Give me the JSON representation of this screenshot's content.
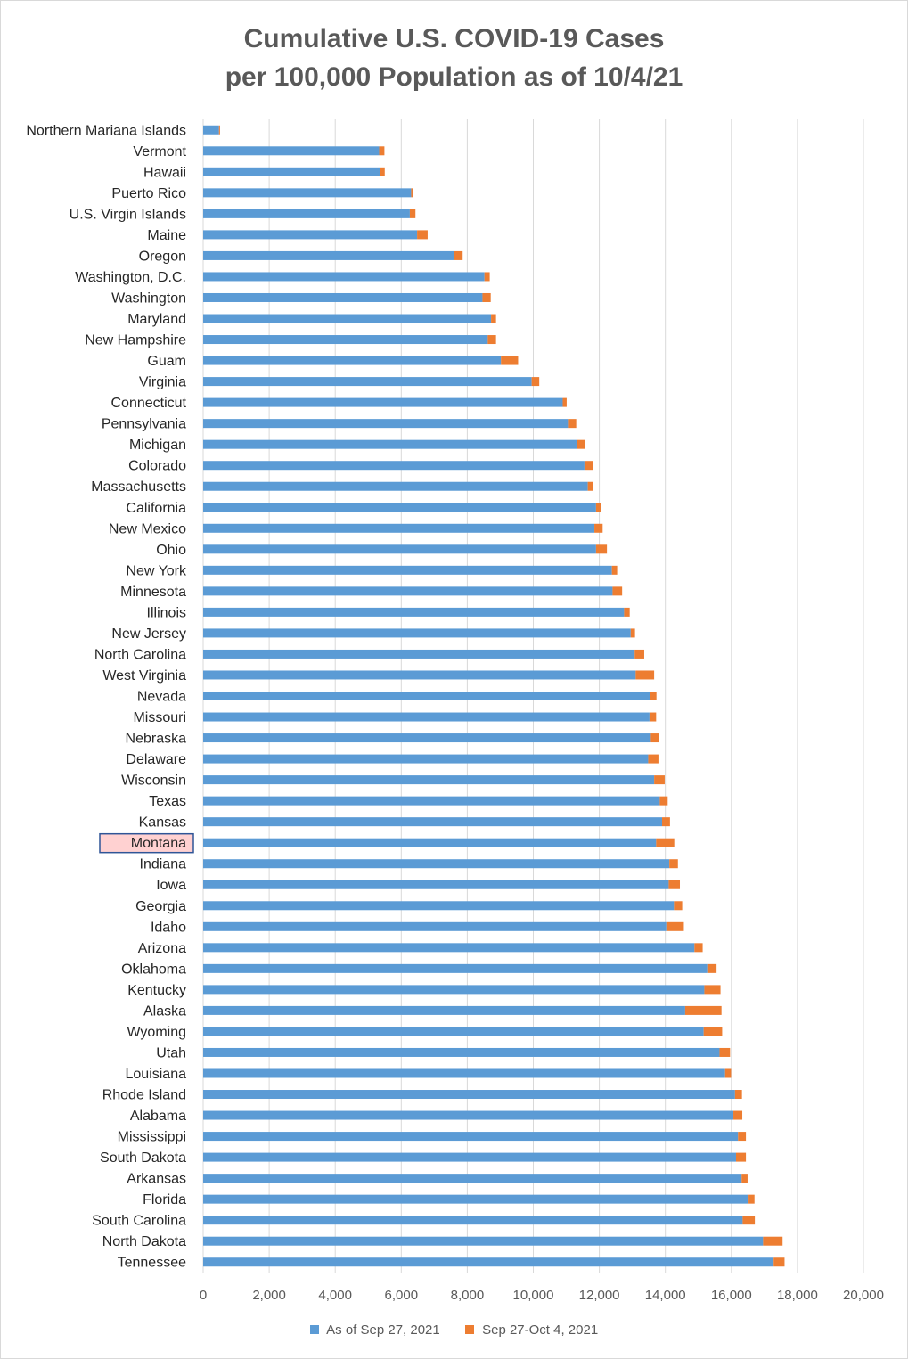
{
  "chart_data": {
    "type": "bar",
    "orientation": "horizontal",
    "stacked": true,
    "title_lines": [
      "Cumulative U.S. COVID-19 Cases",
      "per 100,000 Population as of 10/4/21"
    ],
    "xlim": [
      0,
      20000
    ],
    "x_ticks": [
      "0",
      "2,000",
      "4,000",
      "6,000",
      "8,000",
      "10,000",
      "12,000",
      "14,000",
      "16,000",
      "18,000",
      "20,000"
    ],
    "x_tick_values": [
      0,
      2000,
      4000,
      6000,
      8000,
      10000,
      12000,
      14000,
      16000,
      18000,
      20000
    ],
    "grid": "vertical",
    "legend_position": "bottom",
    "highlighted_category": "Montana",
    "categories": [
      "Northern Mariana Islands",
      "Vermont",
      "Hawaii",
      "Puerto Rico",
      "U.S. Virgin Islands",
      "Maine",
      "Oregon",
      "Washington, D.C.",
      "Washington",
      "Maryland",
      "New Hampshire",
      "Guam",
      "Virginia",
      "Connecticut",
      "Pennsylvania",
      "Michigan",
      "Colorado",
      "Massachusetts",
      "California",
      "New Mexico",
      "Ohio",
      "New York",
      "Minnesota",
      "Illinois",
      "New Jersey",
      "North Carolina",
      "West Virginia",
      "Nevada",
      "Missouri",
      "Nebraska",
      "Delaware",
      "Wisconsin",
      "Texas",
      "Kansas",
      "Montana",
      "Indiana",
      "Iowa",
      "Georgia",
      "Idaho",
      "Arizona",
      "Oklahoma",
      "Kentucky",
      "Alaska",
      "Wyoming",
      "Utah",
      "Louisiana",
      "Rhode Island",
      "Alabama",
      "Mississippi",
      "South Dakota",
      "Arkansas",
      "Florida",
      "South Carolina",
      "North Dakota",
      "Tennessee"
    ],
    "series": [
      {
        "name": "As of Sep 27, 2021",
        "color": "#5b9bd5",
        "values": [
          480,
          5330,
          5370,
          6300,
          6260,
          6480,
          7600,
          8520,
          8460,
          8720,
          8620,
          9020,
          9950,
          10890,
          11050,
          11330,
          11550,
          11650,
          11900,
          11850,
          11900,
          12380,
          12400,
          12750,
          12950,
          13070,
          13100,
          13530,
          13520,
          13560,
          13480,
          13660,
          13830,
          13900,
          13720,
          14120,
          14100,
          14260,
          14030,
          14880,
          15270,
          15180,
          14600,
          15160,
          15640,
          15810,
          16110,
          16060,
          16200,
          16140,
          16310,
          16520,
          16340,
          16960,
          17280
        ]
      },
      {
        "name": "Sep 27-Oct 4, 2021",
        "color": "#ed7d31",
        "values": [
          30,
          160,
          130,
          60,
          170,
          320,
          260,
          160,
          250,
          150,
          250,
          520,
          230,
          120,
          250,
          240,
          250,
          160,
          140,
          250,
          330,
          160,
          290,
          170,
          130,
          290,
          560,
          200,
          200,
          250,
          310,
          320,
          240,
          240,
          550,
          260,
          340,
          250,
          530,
          250,
          280,
          490,
          1100,
          560,
          320,
          180,
          210,
          270,
          240,
          300,
          180,
          180,
          370,
          590,
          330
        ]
      }
    ]
  }
}
